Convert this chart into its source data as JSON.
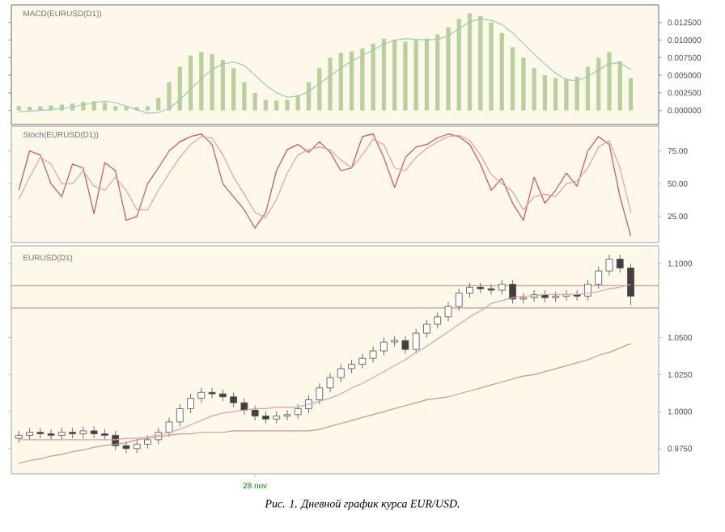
{
  "chart_data": [
    {
      "type": "bar",
      "title": "MACD(EURUSD(D1))",
      "categories": [
        null,
        null,
        null,
        null,
        null,
        null,
        null,
        null,
        null,
        null,
        null,
        null,
        null,
        null,
        null,
        null,
        null,
        null,
        null,
        null,
        null,
        null,
        null,
        null,
        null,
        null,
        null,
        null,
        null,
        null,
        null,
        null,
        null,
        null,
        null,
        null,
        null,
        null,
        null,
        null,
        null,
        null,
        null,
        null,
        null,
        null,
        null,
        null,
        null,
        null,
        null,
        null,
        null,
        null,
        null,
        null,
        null,
        null
      ],
      "series": [
        {
          "color": "#b8d09c",
          "values": [
            0.0006,
            0.0005,
            0.0006,
            0.0007,
            0.0008,
            0.001,
            0.0012,
            0.0013,
            0.0011,
            0.0006,
            0.0005,
            0.0005,
            0.0006,
            0.0018,
            0.004,
            0.0062,
            0.0078,
            0.0083,
            0.008,
            0.0072,
            0.006,
            0.004,
            0.0025,
            0.0015,
            0.0014,
            0.0015,
            0.0022,
            0.004,
            0.006,
            0.0075,
            0.0082,
            0.0084,
            0.0088,
            0.0095,
            0.0102,
            0.01,
            0.0098,
            0.01,
            0.0102,
            0.0108,
            0.0118,
            0.013,
            0.0138,
            0.0134,
            0.0125,
            0.011,
            0.009,
            0.0075,
            0.006,
            0.005,
            0.0046,
            0.0045,
            0.0048,
            0.0062,
            0.0075,
            0.0083,
            0.007,
            0.0046
          ]
        }
      ],
      "ylim": [
        -0.002,
        0.015
      ],
      "yticks": [
        {
          "value": 0.0125,
          "label": "0.012500"
        },
        {
          "value": 0.01,
          "label": "0.010000"
        },
        {
          "value": 0.0075,
          "label": "0.007500"
        },
        {
          "value": 0.005,
          "label": "0.005000"
        },
        {
          "value": 0.0025,
          "label": "0.002500"
        },
        {
          "value": 0,
          "label": "0.000000"
        }
      ],
      "tick_labels": "y"
    },
    {
      "type": "line",
      "categories": [
        null,
        null,
        null,
        null,
        null,
        null,
        null,
        null,
        null,
        null,
        null,
        null,
        null,
        null,
        null,
        null,
        null,
        null,
        null,
        null,
        null,
        null,
        null,
        null,
        null,
        null,
        null,
        null,
        null,
        null,
        null,
        null,
        null,
        null,
        null,
        null,
        null,
        null,
        null,
        null,
        null,
        null,
        null,
        null,
        null,
        null,
        null,
        null,
        null,
        null,
        null,
        null,
        null,
        null,
        null,
        null,
        null,
        null
      ],
      "series": [
        {
          "color": "#9cc8c0",
          "values": [
            -0.0002,
            -0.0001,
            0.0,
            0.0001,
            0.0003,
            0.0005,
            0.0008,
            0.0011,
            0.0013,
            0.0011,
            0.0006,
            0.0001,
            -0.0004,
            -0.0003,
            0.0003,
            0.0015,
            0.003,
            0.0045,
            0.0058,
            0.0066,
            0.0069,
            0.0064,
            0.005,
            0.0036,
            0.0025,
            0.0019,
            0.002,
            0.0027,
            0.0038,
            0.0049,
            0.006,
            0.007,
            0.0078,
            0.0086,
            0.0094,
            0.01,
            0.0102,
            0.0101,
            0.01,
            0.0101,
            0.0106,
            0.0116,
            0.0126,
            0.013,
            0.0128,
            0.0122,
            0.011,
            0.0095,
            0.008,
            0.0066,
            0.0053,
            0.0044,
            0.0042,
            0.0048,
            0.0058,
            0.0066,
            0.0068,
            0.0058
          ]
        }
      ],
      "ylim": [
        -0.002,
        0.015
      ],
      "yticks": [
        {
          "value": 0.0125,
          "label": null
        },
        {
          "value": 0.01,
          "label": null
        },
        {
          "value": 0.0075,
          "label": null
        },
        {
          "value": 0.005,
          "label": null
        },
        {
          "value": 0.0025,
          "label": null
        },
        {
          "value": 0,
          "label": null
        }
      ],
      "tick_labels": false
    },
    {
      "type": "line",
      "title": "Stoch(EURUSD(D1))",
      "categories": [
        null,
        null,
        null,
        null,
        null,
        null,
        null,
        null,
        null,
        null,
        null,
        null,
        null,
        null,
        null,
        null,
        null,
        null,
        null,
        null,
        null,
        null,
        null,
        null,
        null,
        null,
        null,
        null,
        null,
        null,
        null,
        null,
        null,
        null,
        null,
        null,
        null,
        null,
        null,
        null,
        null,
        null,
        null,
        null,
        null,
        null,
        null,
        null,
        null,
        null,
        null,
        null,
        null,
        null,
        null,
        null,
        null,
        null
      ],
      "series": [
        {
          "color": "#c85060",
          "values": [
            45,
            75,
            72,
            50,
            40,
            65,
            62,
            27,
            66,
            60,
            22,
            25,
            50,
            62,
            75,
            82,
            86,
            88,
            80,
            50,
            40,
            30,
            16,
            28,
            60,
            76,
            80,
            74,
            82,
            74,
            60,
            62,
            86,
            88,
            70,
            47,
            70,
            78,
            80,
            85,
            88,
            86,
            80,
            65,
            45,
            54,
            35,
            22,
            55,
            35,
            45,
            58,
            48,
            75,
            86,
            80,
            40,
            10
          ]
        },
        {
          "color": "#dca0b0",
          "values": [
            38,
            55,
            70,
            65,
            50,
            50,
            60,
            48,
            45,
            55,
            45,
            30,
            30,
            45,
            58,
            70,
            80,
            86,
            85,
            72,
            55,
            42,
            28,
            24,
            38,
            58,
            72,
            76,
            78,
            76,
            68,
            62,
            72,
            84,
            80,
            62,
            60,
            70,
            77,
            82,
            86,
            87,
            83,
            72,
            57,
            50,
            44,
            30,
            40,
            42,
            40,
            50,
            52,
            62,
            78,
            83,
            62,
            28
          ]
        }
      ],
      "ylim": [
        5,
        94
      ],
      "yticks": [
        {
          "value": 75,
          "label": "75.00"
        },
        {
          "value": 50,
          "label": "50.00"
        },
        {
          "value": 25,
          "label": "25.00"
        }
      ],
      "tick_labels": "y"
    },
    {
      "type": "candlestick",
      "title": "EURUSD(D1)",
      "categories": [
        null,
        null,
        null,
        null,
        null,
        null,
        null,
        null,
        null,
        null,
        null,
        null,
        null,
        null,
        null,
        null,
        null,
        null,
        null,
        null,
        null,
        null,
        "28 nov",
        null,
        null,
        null,
        null,
        null,
        null,
        null,
        null,
        null,
        null,
        null,
        null,
        null,
        null,
        null,
        null,
        null,
        null,
        null,
        null,
        null,
        null,
        null,
        null,
        null,
        null,
        null,
        null,
        null,
        null,
        null,
        null,
        null,
        null,
        null
      ],
      "ohlc": [
        [
          0.982,
          0.987,
          0.979,
          0.984
        ],
        [
          0.984,
          0.989,
          0.981,
          0.986
        ],
        [
          0.986,
          0.989,
          0.982,
          0.985
        ],
        [
          0.985,
          0.988,
          0.981,
          0.984
        ],
        [
          0.984,
          0.989,
          0.981,
          0.986
        ],
        [
          0.986,
          0.989,
          0.982,
          0.985
        ],
        [
          0.985,
          0.99,
          0.982,
          0.987
        ],
        [
          0.987,
          0.99,
          0.982,
          0.985
        ],
        [
          0.985,
          0.988,
          0.981,
          0.984
        ],
        [
          0.984,
          0.987,
          0.974,
          0.977
        ],
        [
          0.977,
          0.98,
          0.972,
          0.975
        ],
        [
          0.975,
          0.981,
          0.972,
          0.978
        ],
        [
          0.978,
          0.984,
          0.975,
          0.981
        ],
        [
          0.981,
          0.989,
          0.978,
          0.986
        ],
        [
          0.986,
          0.996,
          0.983,
          0.993
        ],
        [
          0.993,
          1.005,
          0.99,
          1.002
        ],
        [
          1.002,
          1.012,
          0.999,
          1.009
        ],
        [
          1.009,
          1.016,
          1.006,
          1.013
        ],
        [
          1.013,
          1.016,
          1.009,
          1.012
        ],
        [
          1.012,
          1.015,
          1.007,
          1.01
        ],
        [
          1.01,
          1.013,
          1.003,
          1.006
        ],
        [
          1.006,
          1.009,
          0.998,
          1.001
        ],
        [
          1.001,
          1.004,
          0.994,
          0.997
        ],
        [
          0.997,
          1.0,
          0.992,
          0.995
        ],
        [
          0.995,
          1.0,
          0.992,
          0.997
        ],
        [
          0.997,
          1.001,
          0.994,
          0.998
        ],
        [
          0.998,
          1.005,
          0.995,
          1.002
        ],
        [
          1.002,
          1.011,
          0.999,
          1.008
        ],
        [
          1.008,
          1.019,
          1.005,
          1.016
        ],
        [
          1.016,
          1.026,
          1.013,
          1.023
        ],
        [
          1.023,
          1.032,
          1.02,
          1.029
        ],
        [
          1.029,
          1.035,
          1.026,
          1.032
        ],
        [
          1.032,
          1.039,
          1.029,
          1.036
        ],
        [
          1.036,
          1.044,
          1.033,
          1.041
        ],
        [
          1.041,
          1.05,
          1.038,
          1.047
        ],
        [
          1.047,
          1.051,
          1.044,
          1.048
        ],
        [
          1.048,
          1.051,
          1.039,
          1.042
        ],
        [
          1.042,
          1.056,
          1.039,
          1.053
        ],
        [
          1.053,
          1.062,
          1.05,
          1.059
        ],
        [
          1.059,
          1.067,
          1.056,
          1.064
        ],
        [
          1.064,
          1.074,
          1.061,
          1.071
        ],
        [
          1.071,
          1.083,
          1.068,
          1.08
        ],
        [
          1.08,
          1.087,
          1.077,
          1.084
        ],
        [
          1.084,
          1.087,
          1.08,
          1.083
        ],
        [
          1.083,
          1.086,
          1.079,
          1.082
        ],
        [
          1.082,
          1.089,
          1.079,
          1.086
        ],
        [
          1.086,
          1.089,
          1.073,
          1.076
        ],
        [
          1.076,
          1.08,
          1.073,
          1.077
        ],
        [
          1.077,
          1.082,
          1.074,
          1.079
        ],
        [
          1.079,
          1.082,
          1.074,
          1.077
        ],
        [
          1.077,
          1.081,
          1.074,
          1.078
        ],
        [
          1.078,
          1.082,
          1.075,
          1.079
        ],
        [
          1.079,
          1.082,
          1.075,
          1.078
        ],
        [
          1.078,
          1.089,
          1.075,
          1.086
        ],
        [
          1.086,
          1.098,
          1.083,
          1.095
        ],
        [
          1.095,
          1.106,
          1.092,
          1.103
        ],
        [
          1.103,
          1.106,
          1.094,
          1.097
        ],
        [
          1.097,
          1.1,
          1.072,
          1.078
        ]
      ],
      "series": [
        {
          "type": "line",
          "color": "#d8a0b4",
          "values": [
            0.981,
            0.981,
            0.981,
            0.981,
            0.981,
            0.981,
            0.981,
            0.981,
            0.981,
            0.981,
            0.982,
            0.982,
            0.983,
            0.984,
            0.986,
            0.988,
            0.991,
            0.994,
            0.997,
            0.999,
            1.0,
            1.001,
            1.002,
            1.002,
            1.003,
            1.003,
            1.003,
            1.005,
            1.007,
            1.009,
            1.012,
            1.016,
            1.019,
            1.023,
            1.027,
            1.031,
            1.035,
            1.04,
            1.044,
            1.049,
            1.054,
            1.059,
            1.064,
            1.068,
            1.073,
            1.075,
            1.077,
            1.078,
            1.078,
            1.079,
            1.079,
            1.079,
            1.079,
            1.08,
            1.081,
            1.083,
            1.084,
            1.086
          ]
        },
        {
          "type": "line",
          "color": "#c49a8a",
          "values": [
            0.965,
            0.967,
            0.968,
            0.97,
            0.971,
            0.973,
            0.974,
            0.976,
            0.977,
            0.978,
            0.979,
            0.981,
            0.982,
            0.983,
            0.984,
            0.985,
            0.985,
            0.986,
            0.986,
            0.986,
            0.987,
            0.987,
            0.987,
            0.987,
            0.987,
            0.987,
            0.987,
            0.987,
            0.988,
            0.99,
            0.992,
            0.994,
            0.996,
            0.998,
            1.0,
            1.002,
            1.004,
            1.006,
            1.008,
            1.009,
            1.01,
            1.012,
            1.014,
            1.016,
            1.018,
            1.02,
            1.022,
            1.024,
            1.025,
            1.027,
            1.029,
            1.031,
            1.033,
            1.035,
            1.038,
            1.04,
            1.043,
            1.046
          ]
        }
      ],
      "ylim": [
        0.958,
        1.112
      ],
      "yticks": [
        {
          "value": 1.1,
          "label": "1.1000"
        },
        {
          "value": 1.05,
          "label": "1.0500"
        },
        {
          "value": 1.025,
          "label": "1.0250"
        },
        {
          "value": 1.0,
          "label": "1.0000"
        },
        {
          "value": 0.975,
          "label": "0.9750"
        }
      ],
      "ref_lines": [
        {
          "axis": "y",
          "value": 1.085,
          "color": "#c89a94"
        },
        {
          "axis": "y",
          "value": 1.07,
          "color": "#c89a94"
        }
      ],
      "annotations": [
        "Рис. 1. Дневной график курса EUR/USD."
      ]
    }
  ]
}
